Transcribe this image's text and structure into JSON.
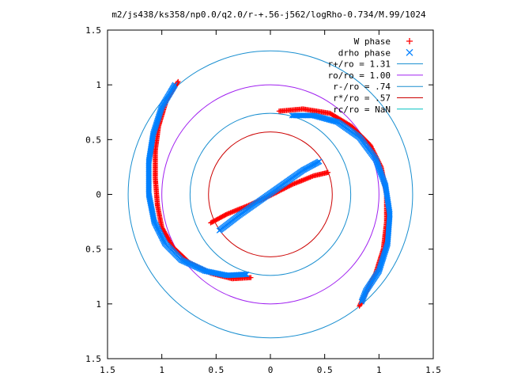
{
  "chart_data": {
    "type": "scatter",
    "title": "m2/js438/ks358/np0.0/q2.0/r-+.56-j562/logRho-0.734/M.99/1024",
    "xlabel": "",
    "ylabel": "",
    "xlim": [
      -1.5,
      1.5
    ],
    "ylim": [
      -1.5,
      1.5
    ],
    "x_ticks": [
      "1.5",
      "1",
      "0.5",
      "0",
      "0.5",
      "1",
      "1.5"
    ],
    "x_tick_values": [
      -1.5,
      -1,
      -0.5,
      0,
      0.5,
      1,
      1.5
    ],
    "y_ticks": [
      "1.5",
      "1",
      "0.5",
      "0",
      "0.5",
      "1",
      "1.5"
    ],
    "y_tick_values": [
      1.5,
      1,
      0.5,
      0,
      -0.5,
      -1,
      -1.5
    ],
    "grid": false,
    "legend_position": "top-right",
    "legend": [
      {
        "label": "W phase",
        "marker": "+",
        "color": "#ff0000"
      },
      {
        "label": "drho phase",
        "marker": "x",
        "color": "#0080ff"
      },
      {
        "label": "r+/ro = 1.31",
        "marker": "line",
        "color": "#1a8fd0"
      },
      {
        "label": "ro/ro = 1.00",
        "marker": "line",
        "color": "#a020f0"
      },
      {
        "label": "r-/ro = .74",
        "marker": "line",
        "color": "#1a8fd0"
      },
      {
        "label": "r*/ro = .57",
        "marker": "line",
        "color": "#cc0000"
      },
      {
        "label": "rc/ro = NaN",
        "marker": "line",
        "color": "#00c0c0"
      }
    ],
    "circles": [
      {
        "name": "r+/ro = 1.31",
        "radius": 1.31,
        "color": "#1a8fd0"
      },
      {
        "name": "ro/ro = 1.00",
        "radius": 1.0,
        "color": "#a020f0"
      },
      {
        "name": "r-/ro = .74",
        "radius": 0.74,
        "color": "#1a8fd0"
      },
      {
        "name": "r*/ro = .57",
        "radius": 0.57,
        "color": "#cc0000"
      }
    ],
    "series": [
      {
        "name": "W phase",
        "marker": "plus",
        "color": "#ff0000",
        "arms": [
          {
            "points": [
              [
                -0.85,
                1.03
              ],
              [
                -0.96,
                0.85
              ],
              [
                -1.03,
                0.62
              ],
              [
                -1.06,
                0.4
              ],
              [
                -1.06,
                0.15
              ],
              [
                -1.04,
                -0.1
              ],
              [
                -1.0,
                -0.3
              ],
              [
                -0.9,
                -0.48
              ],
              [
                -0.75,
                -0.62
              ],
              [
                -0.55,
                -0.72
              ],
              [
                -0.35,
                -0.77
              ],
              [
                -0.18,
                -0.76
              ]
            ]
          },
          {
            "points": [
              [
                0.08,
                0.76
              ],
              [
                0.3,
                0.78
              ],
              [
                0.55,
                0.74
              ],
              [
                0.75,
                0.62
              ],
              [
                0.92,
                0.45
              ],
              [
                1.02,
                0.25
              ],
              [
                1.07,
                0.0
              ],
              [
                1.07,
                -0.25
              ],
              [
                1.04,
                -0.5
              ],
              [
                0.97,
                -0.72
              ],
              [
                0.88,
                -0.9
              ],
              [
                0.82,
                -1.02
              ]
            ]
          },
          {
            "points": [
              [
                -0.55,
                -0.26
              ],
              [
                -0.4,
                -0.18
              ],
              [
                -0.2,
                -0.1
              ],
              [
                0.0,
                -0.01
              ],
              [
                0.2,
                0.09
              ],
              [
                0.4,
                0.17
              ],
              [
                0.53,
                0.2
              ]
            ]
          }
        ]
      },
      {
        "name": "drho phase",
        "marker": "cross",
        "color": "#0080ff",
        "arms": [
          {
            "points": [
              [
                -0.88,
                1.0
              ],
              [
                -1.0,
                0.8
              ],
              [
                -1.08,
                0.55
              ],
              [
                -1.12,
                0.3
              ],
              [
                -1.12,
                0.0
              ],
              [
                -1.07,
                -0.25
              ],
              [
                -0.97,
                -0.45
              ],
              [
                -0.82,
                -0.6
              ],
              [
                -0.6,
                -0.7
              ],
              [
                -0.4,
                -0.74
              ],
              [
                -0.22,
                -0.73
              ]
            ]
          },
          {
            "points": [
              [
                0.2,
                0.72
              ],
              [
                0.4,
                0.72
              ],
              [
                0.62,
                0.66
              ],
              [
                0.82,
                0.52
              ],
              [
                0.97,
                0.32
              ],
              [
                1.06,
                0.08
              ],
              [
                1.1,
                -0.18
              ],
              [
                1.08,
                -0.45
              ],
              [
                1.0,
                -0.7
              ],
              [
                0.88,
                -0.88
              ],
              [
                0.84,
                -0.98
              ]
            ]
          },
          {
            "points": [
              [
                -0.47,
                -0.33
              ],
              [
                -0.3,
                -0.2
              ],
              [
                -0.1,
                -0.06
              ],
              [
                0.1,
                0.08
              ],
              [
                0.3,
                0.22
              ],
              [
                0.45,
                0.3
              ]
            ]
          }
        ]
      }
    ]
  }
}
